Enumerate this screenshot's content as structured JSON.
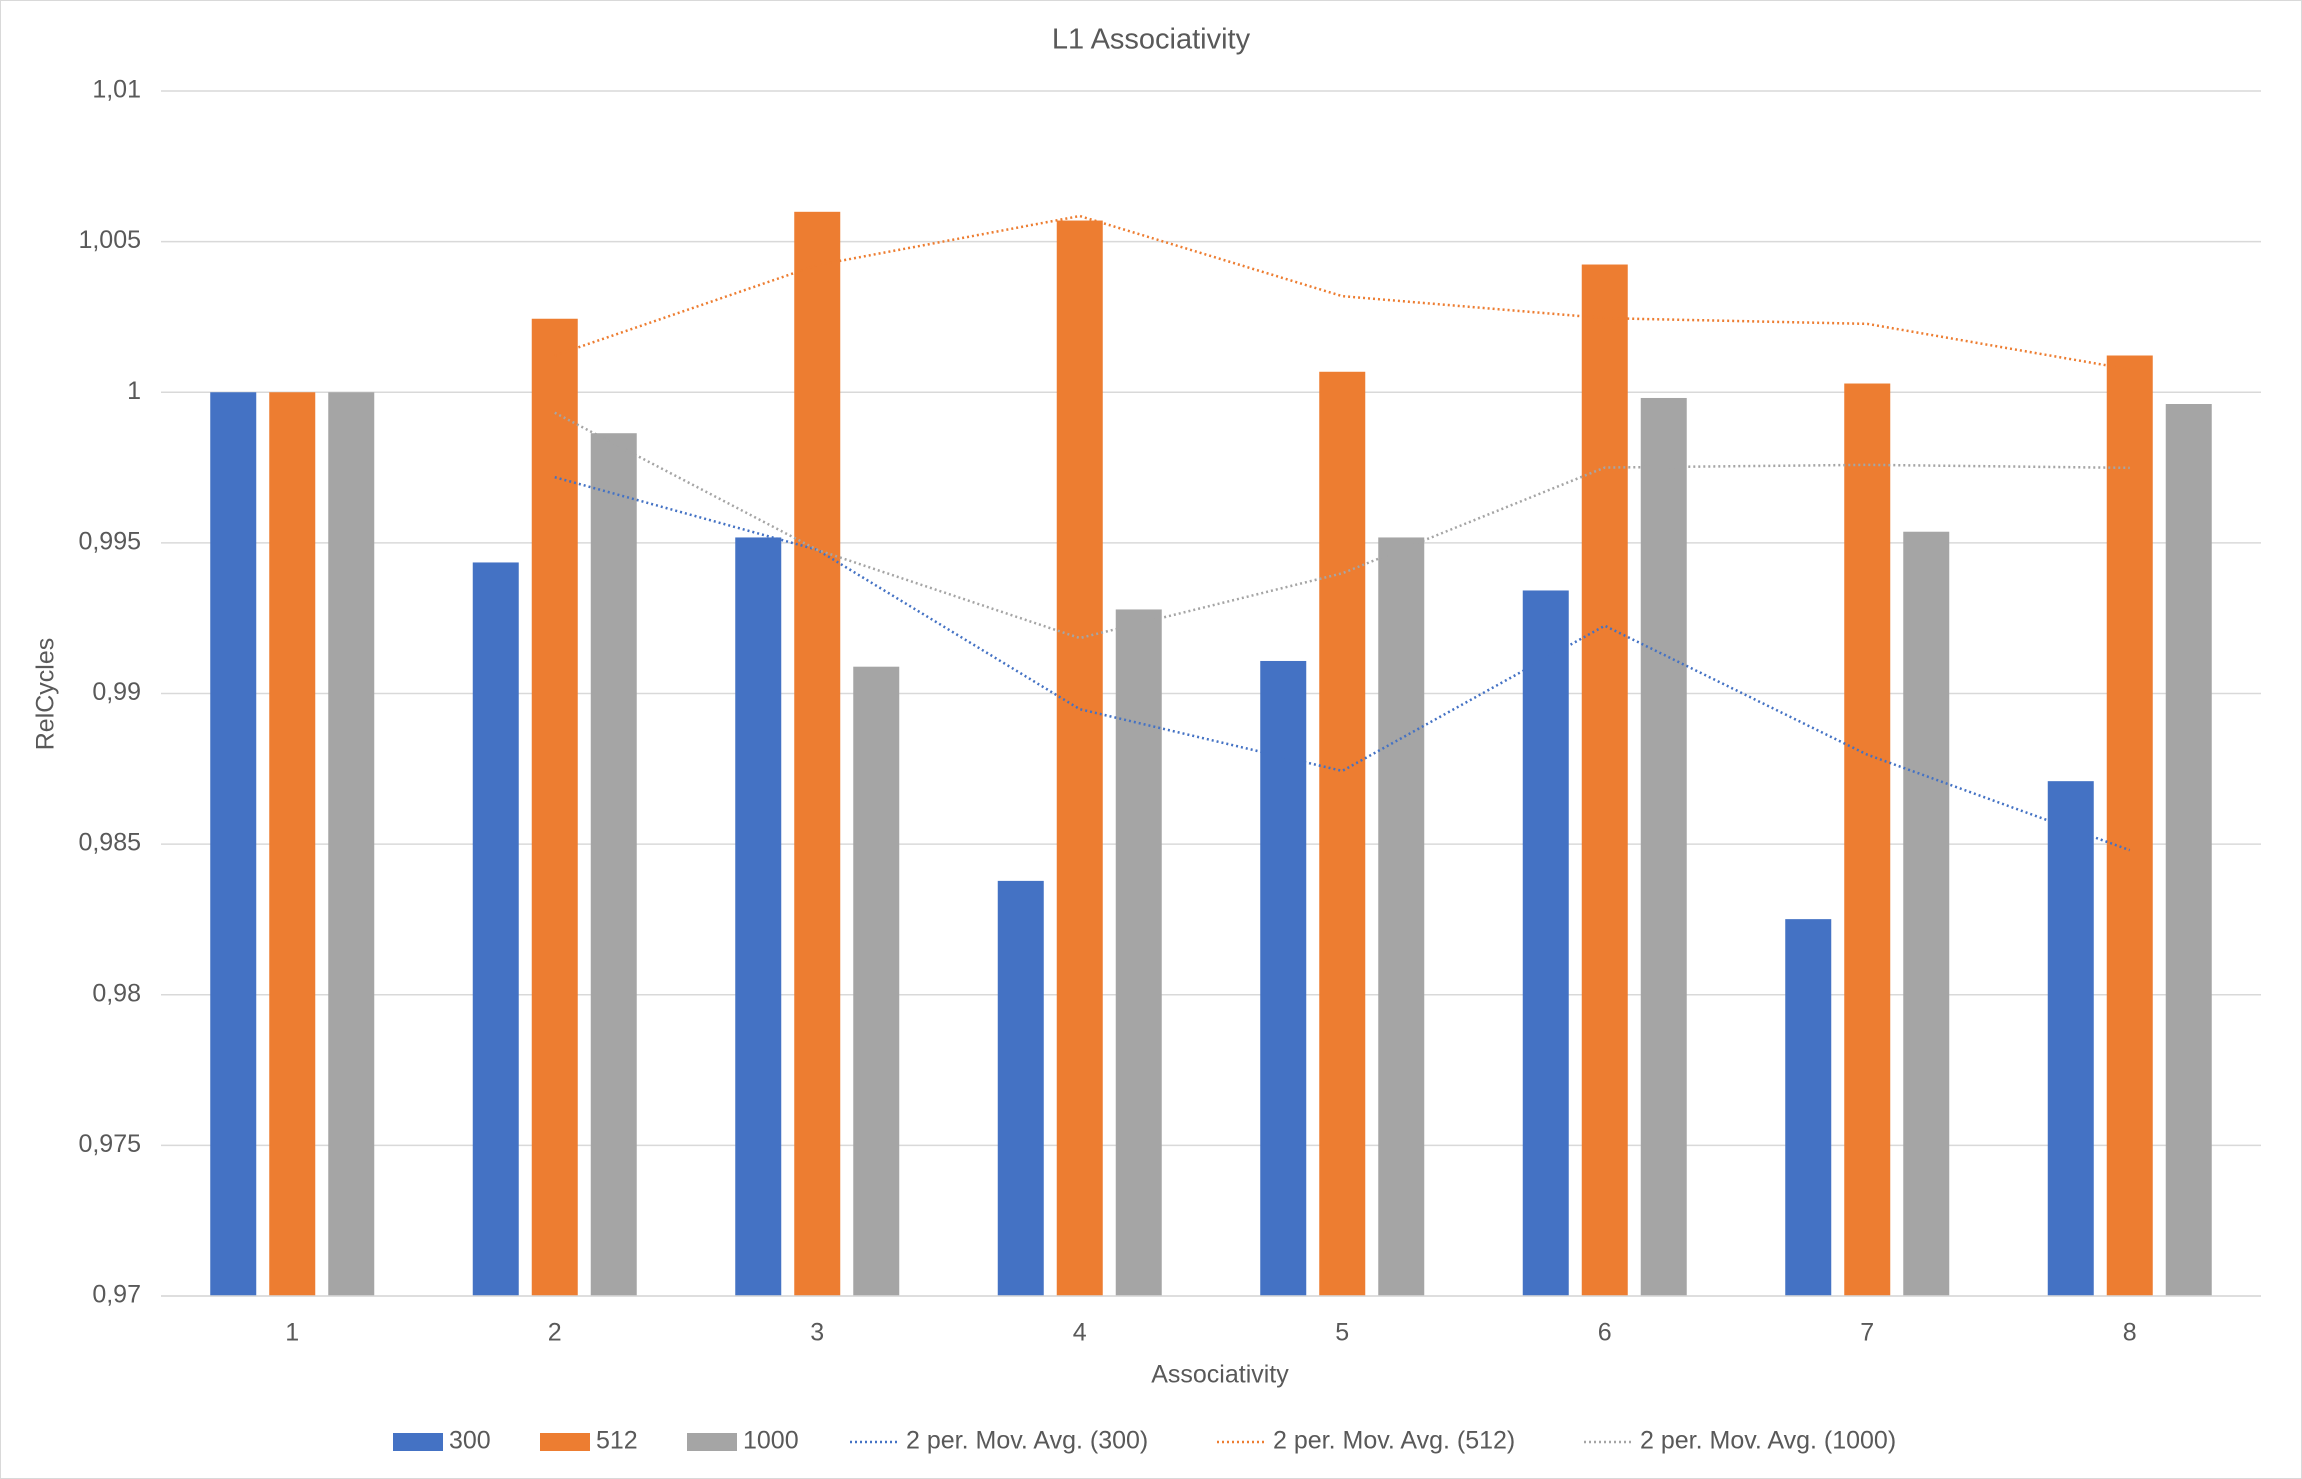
{
  "chart_data": {
    "type": "bar",
    "title": "L1 Associativity",
    "x_label": "Associativity",
    "y_label": "RelCycles",
    "categories": [
      "1",
      "2",
      "3",
      "4",
      "5",
      "6",
      "7",
      "8"
    ],
    "series": [
      {
        "name": "300",
        "type": "bar",
        "color": "#4472c4",
        "values": [
          1.0,
          0.99435,
          0.99518,
          0.98378,
          0.99108,
          0.99342,
          0.98251,
          0.98709
        ]
      },
      {
        "name": "512",
        "type": "bar",
        "color": "#ed7d31",
        "values": [
          1.0,
          1.00244,
          1.00599,
          1.0057,
          1.00068,
          1.00424,
          1.00029,
          1.00122
        ]
      },
      {
        "name": "1000",
        "type": "bar",
        "color": "#a5a5a5",
        "values": [
          1.0,
          0.99864,
          0.99089,
          0.99279,
          0.99518,
          0.99981,
          0.99537,
          0.99961
        ]
      },
      {
        "name": "2 per. Mov. Avg. (300)",
        "type": "line",
        "dash": "dotted",
        "color": "#4472c4",
        "values": [
          null,
          0.99718,
          0.99477,
          0.98948,
          0.98743,
          0.99225,
          0.98797,
          0.9848
        ]
      },
      {
        "name": "2 per. Mov. Avg. (512)",
        "type": "line",
        "dash": "dotted",
        "color": "#ed7d31",
        "values": [
          null,
          1.00122,
          1.00422,
          1.00585,
          1.00319,
          1.00246,
          1.00227,
          1.00076
        ]
      },
      {
        "name": "2 per. Mov. Avg. (1000)",
        "type": "line",
        "dash": "dotted",
        "color": "#a5a5a5",
        "values": [
          null,
          0.99932,
          0.99477,
          0.99184,
          0.99399,
          0.9975,
          0.99759,
          0.99749
        ]
      }
    ],
    "ylim": [
      0.97,
      1.01
    ],
    "yticks": [
      {
        "value": 0.97,
        "label": "0,97"
      },
      {
        "value": 0.975,
        "label": "0,975"
      },
      {
        "value": 0.98,
        "label": "0,98"
      },
      {
        "value": 0.985,
        "label": "0,985"
      },
      {
        "value": 0.99,
        "label": "0,99"
      },
      {
        "value": 0.995,
        "label": "0,995"
      },
      1,
      {
        "value": 1.005,
        "label": "1,005"
      },
      {
        "value": 1.01,
        "label": "1,01"
      }
    ],
    "grid": true,
    "legend": "bottom"
  }
}
